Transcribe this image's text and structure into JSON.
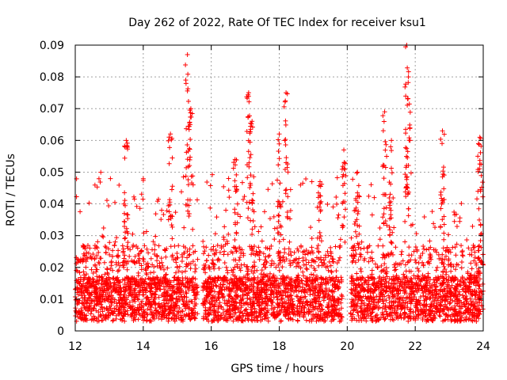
{
  "chart_data": {
    "type": "scatter",
    "title": "Day 262 of 2022, Rate Of TEC Index for receiver ksu1",
    "xlabel": "GPS time / hours",
    "ylabel": "ROTI / TECUs",
    "xlim": [
      12,
      24
    ],
    "ylim": [
      0,
      0.09
    ],
    "x_ticks": [
      12,
      14,
      16,
      18,
      20,
      22,
      24
    ],
    "y_ticks": [
      0,
      0.01,
      0.02,
      0.03,
      0.04,
      0.05,
      0.06,
      0.07,
      0.08,
      0.09
    ],
    "x_tick_labels": [
      "12",
      "14",
      "16",
      "18",
      "20",
      "22",
      "24"
    ],
    "y_tick_labels": [
      "0",
      "0.01",
      "0.02",
      "0.03",
      "0.04",
      "0.05",
      "0.06",
      "0.07",
      "0.08",
      "0.09"
    ],
    "grid": true,
    "marker": "+",
    "marker_color": "#ff0000",
    "series": [
      {
        "name": "ROTI",
        "description_of_distribution": "dense band 0.002-0.02 across full range with sparser spikes",
        "peaks": [
          {
            "x": 13.5,
            "y": 0.06
          },
          {
            "x": 14.8,
            "y": 0.062
          },
          {
            "x": 15.3,
            "y": 0.087
          },
          {
            "x": 15.4,
            "y": 0.07
          },
          {
            "x": 16.7,
            "y": 0.054
          },
          {
            "x": 17.1,
            "y": 0.075
          },
          {
            "x": 17.2,
            "y": 0.066
          },
          {
            "x": 18.0,
            "y": 0.062
          },
          {
            "x": 18.2,
            "y": 0.075
          },
          {
            "x": 19.2,
            "y": 0.047
          },
          {
            "x": 19.9,
            "y": 0.057
          },
          {
            "x": 20.3,
            "y": 0.05
          },
          {
            "x": 21.1,
            "y": 0.069
          },
          {
            "x": 21.3,
            "y": 0.06
          },
          {
            "x": 21.75,
            "y": 0.09
          },
          {
            "x": 21.8,
            "y": 0.08
          },
          {
            "x": 22.8,
            "y": 0.063
          },
          {
            "x": 23.9,
            "y": 0.061
          }
        ],
        "gap_intervals": [
          [
            15.6,
            15.75
          ],
          [
            19.85,
            20.1
          ]
        ]
      }
    ]
  }
}
